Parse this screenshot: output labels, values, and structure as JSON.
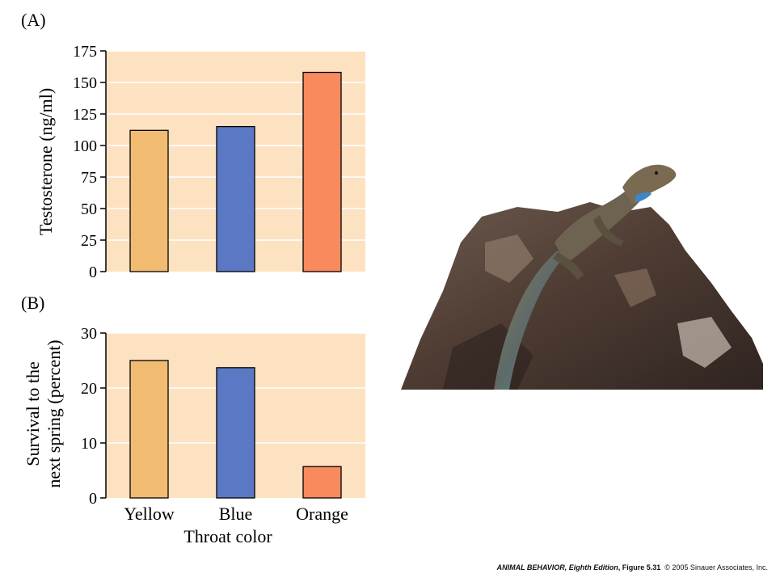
{
  "colors": {
    "plot_bg": "#fde2c2",
    "grid": "#ffffff",
    "yellow": "#f2bb72",
    "blue": "#5b78c4",
    "orange": "#f88a5e",
    "axis": "#000000"
  },
  "chart_data": [
    {
      "panel": "(A)",
      "type": "bar",
      "categories": [
        "Yellow",
        "Blue",
        "Orange"
      ],
      "values": [
        112,
        115,
        158
      ],
      "ylabel": "Testosterone (ng/ml)",
      "ylim": [
        0,
        175
      ],
      "yticks": [
        0,
        25,
        50,
        75,
        100,
        125,
        150,
        175
      ],
      "grid": true
    },
    {
      "panel": "(B)",
      "type": "bar",
      "categories": [
        "Yellow",
        "Blue",
        "Orange"
      ],
      "values": [
        25,
        23.7,
        5.7
      ],
      "ylabel": [
        "Survival to the",
        "next spring (percent)"
      ],
      "xlabel": "Throat color",
      "ylim": [
        0,
        30
      ],
      "yticks": [
        0,
        10,
        20,
        30
      ],
      "grid": true
    }
  ],
  "photo": {
    "icon": "lizard-on-rock-photo"
  },
  "credit": {
    "book": "ANIMAL BEHAVIOR, Eighth Edition",
    "figure": ", Figure 5.31",
    "rest": "  © 2005 Sinauer Associates, Inc."
  }
}
